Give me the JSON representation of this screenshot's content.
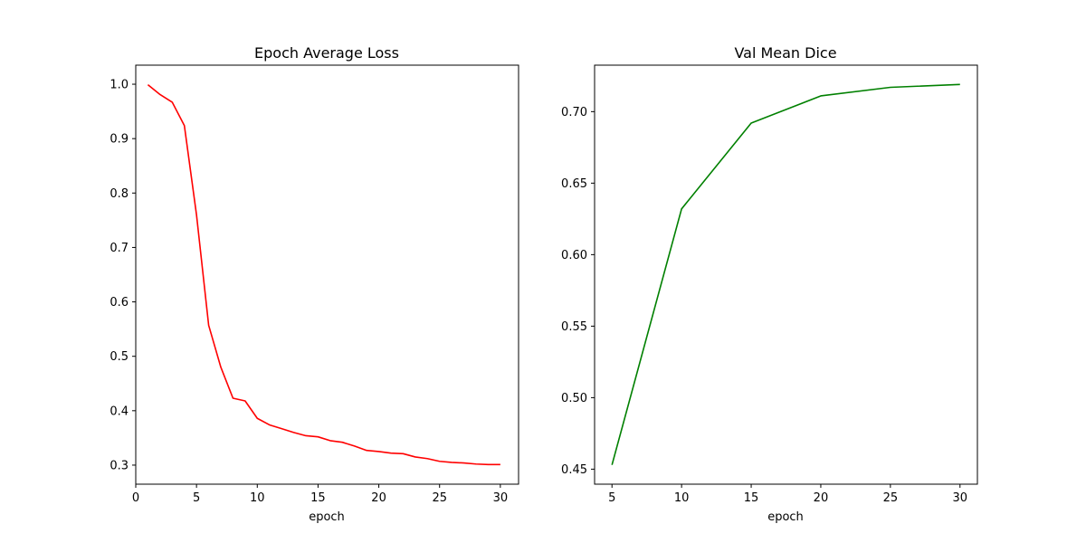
{
  "chart_data": [
    {
      "type": "line",
      "title": "Epoch Average Loss",
      "xlabel": "epoch",
      "ylabel": "",
      "color": "#ff0000",
      "xlim": [
        0,
        31.5
      ],
      "ylim": [
        0.265,
        1.035
      ],
      "xticks": [
        0,
        5,
        10,
        15,
        20,
        25,
        30
      ],
      "yticks": [
        0.3,
        0.4,
        0.5,
        0.6,
        0.7,
        0.8,
        0.9,
        1.0
      ],
      "ytick_labels": [
        "0.3",
        "0.4",
        "0.5",
        "0.6",
        "0.7",
        "0.8",
        "0.9",
        "1.0"
      ],
      "x": [
        1,
        2,
        3,
        4,
        5,
        6,
        7,
        8,
        9,
        10,
        11,
        12,
        13,
        14,
        15,
        16,
        17,
        18,
        19,
        20,
        21,
        22,
        23,
        24,
        25,
        26,
        27,
        28,
        29,
        30
      ],
      "y": [
        0.999,
        0.981,
        0.967,
        0.924,
        0.76,
        0.557,
        0.48,
        0.423,
        0.418,
        0.386,
        0.374,
        0.367,
        0.36,
        0.354,
        0.352,
        0.345,
        0.342,
        0.335,
        0.327,
        0.325,
        0.322,
        0.321,
        0.315,
        0.312,
        0.307,
        0.305,
        0.304,
        0.302,
        0.301,
        0.301
      ],
      "grid": false
    },
    {
      "type": "line",
      "title": "Val Mean Dice",
      "xlabel": "epoch",
      "ylabel": "",
      "color": "#008000",
      "xlim": [
        3.75,
        31.25
      ],
      "ylim": [
        0.4395,
        0.7325
      ],
      "xticks": [
        5,
        10,
        15,
        20,
        25,
        30
      ],
      "yticks": [
        0.45,
        0.5,
        0.55,
        0.6,
        0.65,
        0.7
      ],
      "ytick_labels": [
        "0.45",
        "0.50",
        "0.55",
        "0.60",
        "0.65",
        "0.70"
      ],
      "x": [
        5,
        10,
        15,
        20,
        25,
        30
      ],
      "y": [
        0.453,
        0.632,
        0.692,
        0.711,
        0.717,
        0.719
      ],
      "grid": false
    }
  ]
}
